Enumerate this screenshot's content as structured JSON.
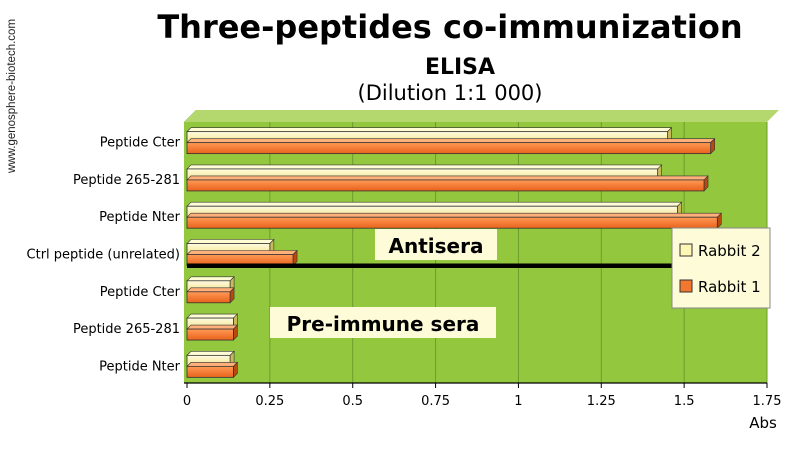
{
  "watermark": "www.genosphere-biotech.com",
  "chart_data": {
    "type": "bar",
    "orientation": "horizontal",
    "title": "Three-peptides co-immunization",
    "subtitle": "ELISA",
    "subtitle2": "(Dilution 1:1 000)",
    "xlabel": "Abs",
    "ylabel": "",
    "xlim": [
      0,
      1.75
    ],
    "xticks": [
      "0",
      "0.25",
      "0.5",
      "0.75",
      "1",
      "1.25",
      "1.5",
      "1.75"
    ],
    "grid": true,
    "categories": [
      "Peptide Cter",
      "Peptide 265-281",
      "Peptide Nter",
      "Ctrl peptide (unrelated)",
      "Peptide Cter",
      "Peptide 265-281",
      "Peptide Nter"
    ],
    "series": [
      {
        "name": "Rabbit 2",
        "color": "#fdf6b5",
        "values": [
          1.45,
          1.42,
          1.48,
          0.25,
          0.13,
          0.14,
          0.13
        ]
      },
      {
        "name": "Rabbit 1",
        "color": "#f4772f",
        "values": [
          1.58,
          1.56,
          1.6,
          0.32,
          0.13,
          0.14,
          0.14
        ]
      }
    ],
    "group_labels": [
      "Antisera",
      "Pre-immune sera"
    ],
    "legend_position": "right",
    "plot_background": "#93c83e",
    "separator_after_category_index": 3
  }
}
